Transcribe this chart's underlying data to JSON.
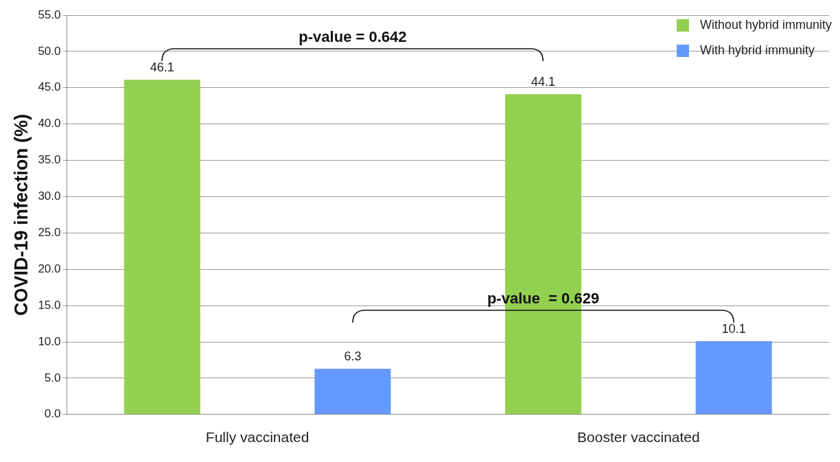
{
  "chart_data": {
    "type": "bar",
    "ylabel": "COVID-19 infection (%)",
    "categories": [
      "Fully vaccinated",
      "Booster vaccinated"
    ],
    "series": [
      {
        "name": "Without hybrid immunity",
        "color": "#92d050",
        "values": [
          46.1,
          44.1
        ]
      },
      {
        "name": "With hybrid immunity",
        "color": "#6699ff",
        "values": [
          6.3,
          10.1
        ]
      }
    ],
    "ylim": [
      0,
      55
    ],
    "yticks": [
      {
        "value": 0,
        "label": "0.0"
      },
      {
        "value": 5,
        "label": "5.0"
      },
      {
        "value": 10,
        "label": "10.0"
      },
      {
        "value": 15,
        "label": "15.0"
      },
      {
        "value": 20,
        "label": "20.0"
      },
      {
        "value": 25,
        "label": "25.0"
      },
      {
        "value": 30,
        "label": "30.0"
      },
      {
        "value": 35,
        "label": "35.0"
      },
      {
        "value": 40,
        "label": "40.0"
      },
      {
        "value": 45,
        "label": "45.0"
      },
      {
        "value": 50,
        "label": "50.0"
      },
      {
        "value": 55,
        "label": "55.0"
      }
    ],
    "grid": "y",
    "legend": "top right",
    "data_labels": true,
    "annotations": [
      "p-value = 0.642",
      "p-value  = 0.629"
    ]
  }
}
